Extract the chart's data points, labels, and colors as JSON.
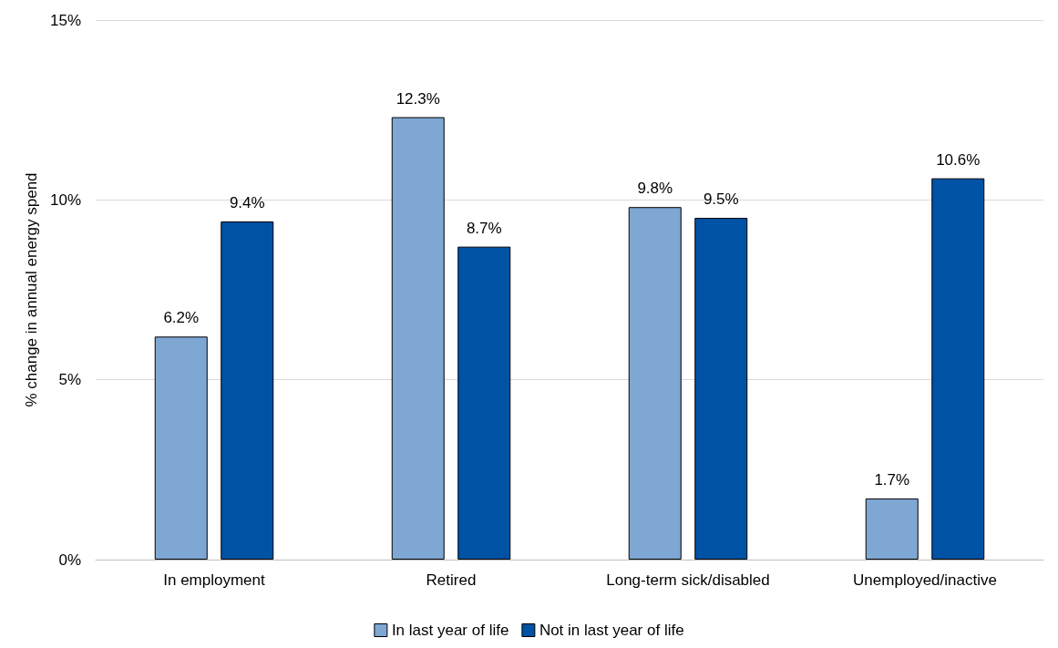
{
  "chart_data": {
    "type": "bar",
    "ylabel": "% change in annual energy spend",
    "categories": [
      "In employment",
      "Retired",
      "Long-term sick/disabled",
      "Unemployed/inactive"
    ],
    "series": [
      {
        "name": "In last year of life",
        "color": "#7ea7d3",
        "values": [
          6.2,
          12.3,
          9.8,
          1.7
        ],
        "value_labels": [
          "6.2%",
          "12.3%",
          "9.8%",
          "1.7%"
        ]
      },
      {
        "name": "Not in last year of life",
        "color": "#0052a5",
        "values": [
          9.4,
          8.7,
          9.5,
          10.6
        ],
        "value_labels": [
          "9.4%",
          "8.7%",
          "9.5%",
          "10.6%"
        ]
      }
    ],
    "ylim": [
      0,
      15
    ],
    "yticks": [
      {
        "value": 0,
        "label": "0%"
      },
      {
        "value": 5,
        "label": "5%"
      },
      {
        "value": 10,
        "label": "10%"
      },
      {
        "value": 15,
        "label": "15%"
      }
    ],
    "grid": "y",
    "legend": "bottom"
  }
}
